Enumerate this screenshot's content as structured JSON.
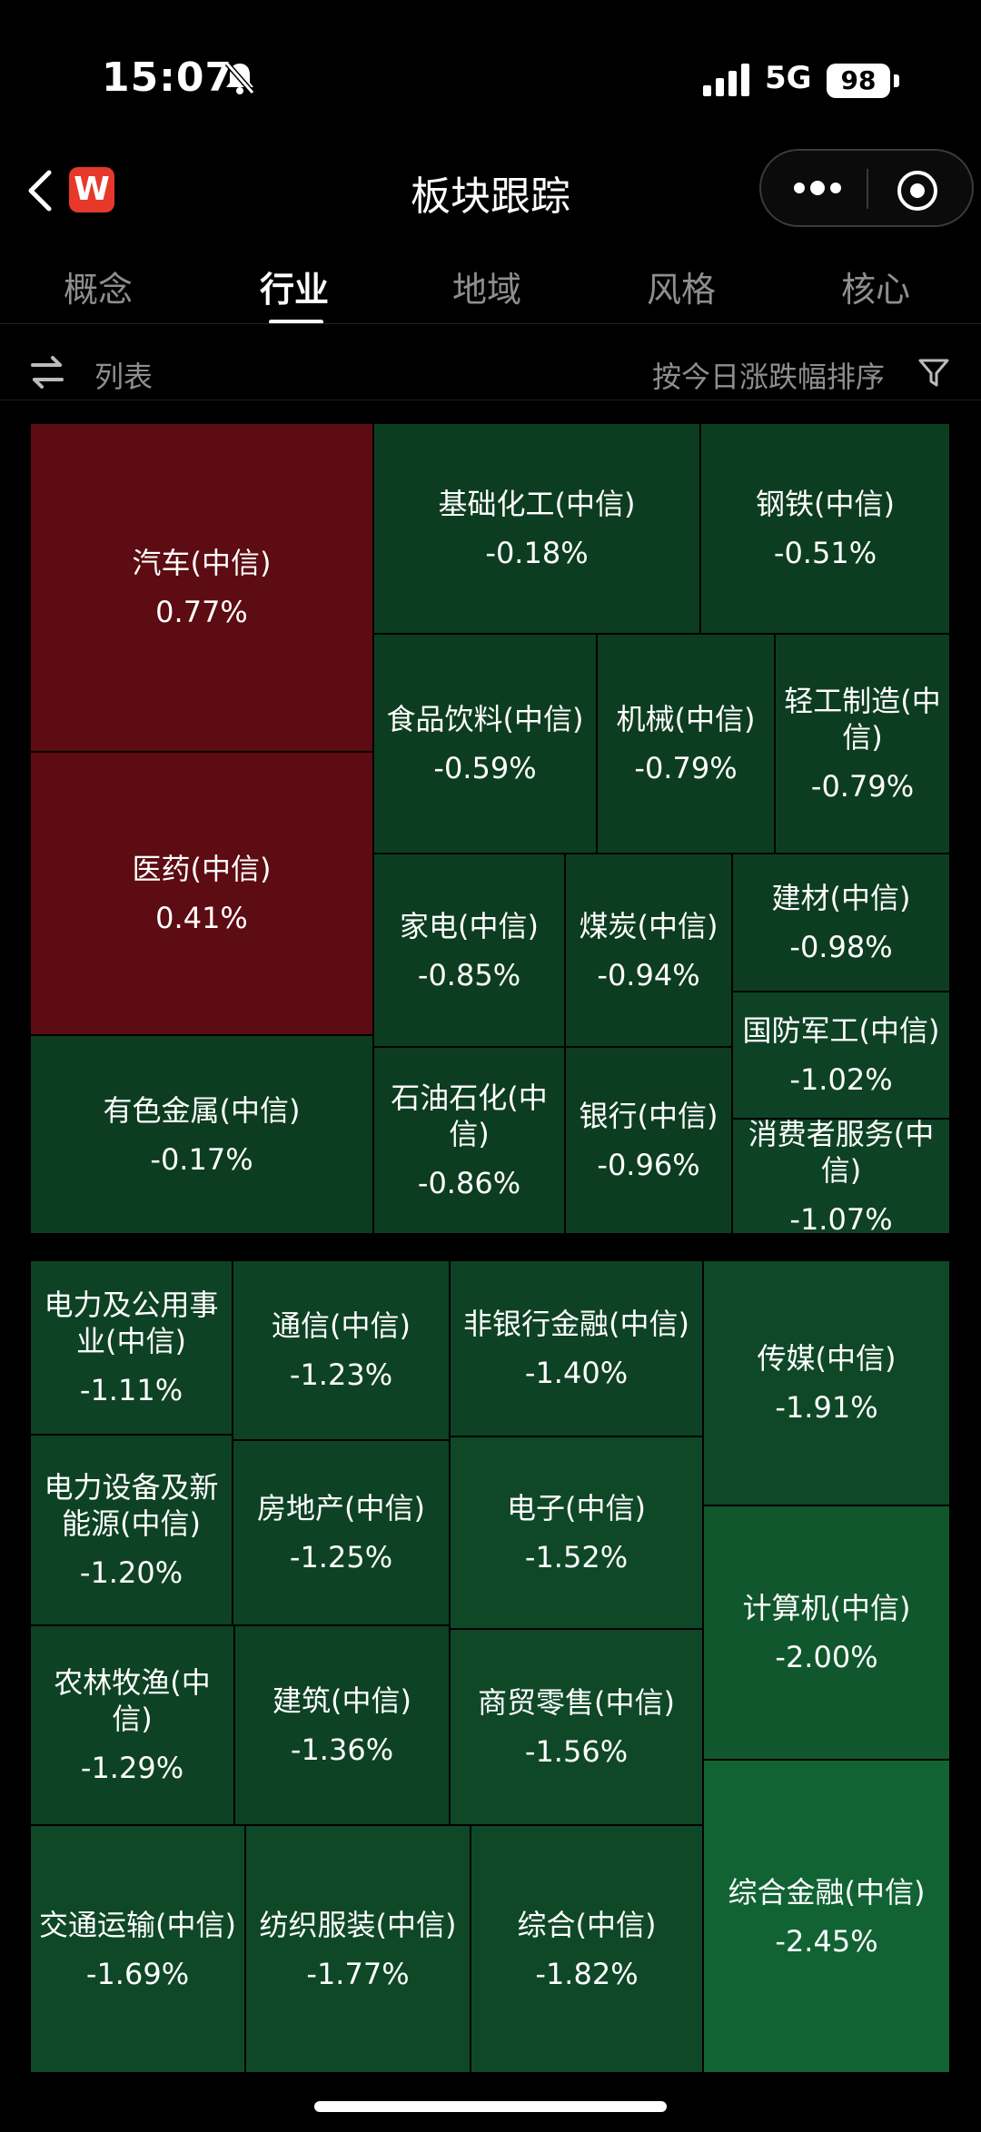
{
  "status_bar": {
    "time": "15:07",
    "network": "5G",
    "battery": "98"
  },
  "nav": {
    "title": "板块跟踪",
    "app_icon_letter": "W"
  },
  "tabs": [
    {
      "label": "概念",
      "active": false
    },
    {
      "label": "行业",
      "active": true
    },
    {
      "label": "地域",
      "active": false
    },
    {
      "label": "风格",
      "active": false
    },
    {
      "label": "核心",
      "active": false
    }
  ],
  "toolbar": {
    "list_label": "列表",
    "sort_label": "按今日涨跌幅排序"
  },
  "colors": {
    "up": "#5c0c12",
    "down_1": "#0d3d20",
    "down_2": "#0e4224",
    "down_3": "#0f4827",
    "down_4": "#11572d",
    "down_5": "#126334"
  },
  "sectors": [
    {
      "name": "汽车(中信)",
      "change": "0.77%"
    },
    {
      "name": "医药(中信)",
      "change": "0.41%"
    },
    {
      "name": "有色金属(中信)",
      "change": "-0.17%"
    },
    {
      "name": "基础化工(中信)",
      "change": "-0.18%"
    },
    {
      "name": "钢铁(中信)",
      "change": "-0.51%"
    },
    {
      "name": "食品饮料(中信)",
      "change": "-0.59%"
    },
    {
      "name": "机械(中信)",
      "change": "-0.79%"
    },
    {
      "name": "轻工制造(中信)",
      "change": "-0.79%"
    },
    {
      "name": "家电(中信)",
      "change": "-0.85%"
    },
    {
      "name": "煤炭(中信)",
      "change": "-0.94%"
    },
    {
      "name": "建材(中信)",
      "change": "-0.98%"
    },
    {
      "name": "国防军工(中信)",
      "change": "-1.02%"
    },
    {
      "name": "石油石化(中信)",
      "change": "-0.86%"
    },
    {
      "name": "银行(中信)",
      "change": "-0.96%"
    },
    {
      "name": "消费者服务(中信)",
      "change": "-1.07%"
    },
    {
      "name": "电力及公用事业(中信)",
      "change": "-1.11%"
    },
    {
      "name": "通信(中信)",
      "change": "-1.23%"
    },
    {
      "name": "非银行金融(中信)",
      "change": "-1.40%"
    },
    {
      "name": "传媒(中信)",
      "change": "-1.91%"
    },
    {
      "name": "电力设备及新能源(中信)",
      "change": "-1.20%"
    },
    {
      "name": "房地产(中信)",
      "change": "-1.25%"
    },
    {
      "name": "电子(中信)",
      "change": "-1.52%"
    },
    {
      "name": "计算机(中信)",
      "change": "-2.00%"
    },
    {
      "name": "农林牧渔(中信)",
      "change": "-1.29%"
    },
    {
      "name": "建筑(中信)",
      "change": "-1.36%"
    },
    {
      "name": "商贸零售(中信)",
      "change": "-1.56%"
    },
    {
      "name": "综合金融(中信)",
      "change": "-2.45%"
    },
    {
      "name": "交通运输(中信)",
      "change": "-1.69%"
    },
    {
      "name": "纺织服装(中信)",
      "change": "-1.77%"
    },
    {
      "name": "综合(中信)",
      "change": "-1.82%"
    }
  ]
}
